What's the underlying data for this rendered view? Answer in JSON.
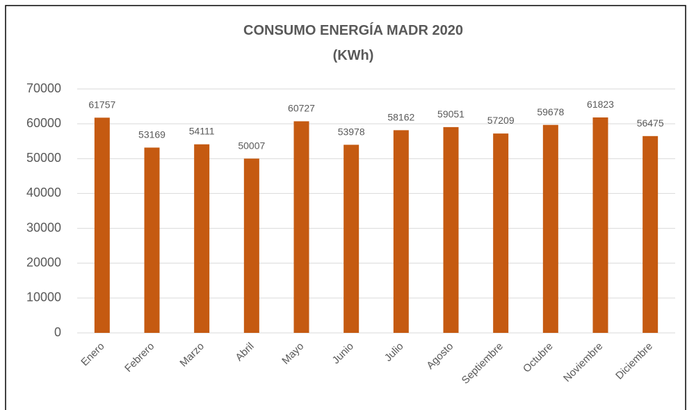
{
  "chart_data": {
    "type": "bar",
    "title": "CONSUMO ENERGÍA MADR 2020",
    "subtitle": "(KWh)",
    "categories": [
      "Enero",
      "Febrero",
      "Marzo",
      "Abril",
      "Mayo",
      "Junio",
      "Julio",
      "Agosto",
      "Septiembre",
      "Octubre",
      "Noviembre",
      "Diciembre"
    ],
    "values": [
      61757,
      53169,
      54111,
      50007,
      60727,
      53978,
      58162,
      59051,
      57209,
      59678,
      61823,
      56475
    ],
    "color": "#c55a11",
    "ylim": [
      0,
      70000
    ],
    "yticks": [
      0,
      10000,
      20000,
      30000,
      40000,
      50000,
      60000,
      70000
    ],
    "grid": true
  }
}
